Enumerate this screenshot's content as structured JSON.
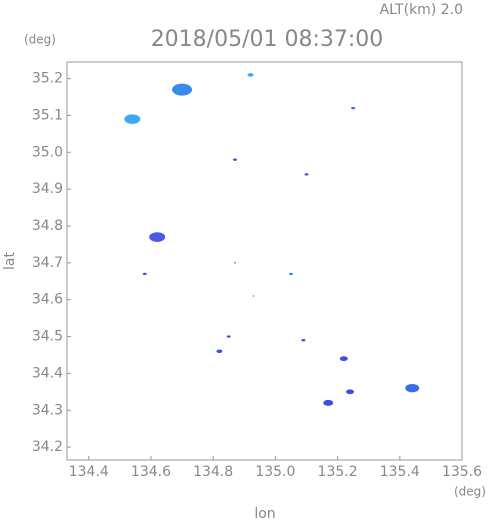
{
  "chart_data": {
    "type": "scatter",
    "title": "2018/05/01 08:37:00",
    "subtitle": "ALT(km) 2.0",
    "y_unit": "(deg)",
    "x_unit": "(deg)",
    "x_label": "lon",
    "y_label": "lat",
    "xlim": [
      134.33,
      135.6
    ],
    "ylim": [
      34.165,
      35.245
    ],
    "xticks": [
      134.4,
      134.6,
      134.8,
      {
        "value": 135.0,
        "label": "135.0"
      },
      135.2,
      135.4,
      135.6
    ],
    "yticks": [
      34.2,
      34.3,
      34.4,
      34.5,
      34.6,
      34.7,
      34.8,
      34.9,
      {
        "value": 35.0,
        "label": "35.0"
      },
      35.1,
      35.2
    ],
    "series": [
      {
        "x": [
          134.54,
          134.7,
          134.92,
          135.25,
          134.87,
          135.1,
          134.62,
          134.58,
          134.87,
          135.05,
          134.93,
          134.82,
          134.85,
          135.09,
          135.22,
          135.17,
          135.24,
          135.44
        ],
        "values": [
          35.09,
          35.17,
          35.21,
          35.12,
          34.98,
          34.94,
          34.77,
          34.67,
          34.7,
          34.67,
          34.61,
          34.46,
          34.5,
          34.49,
          34.44,
          34.32,
          34.35,
          34.36
        ],
        "sizes": [
          8,
          10,
          3,
          2,
          2,
          2,
          8,
          2,
          1,
          2,
          1,
          3,
          2,
          2,
          4,
          5,
          4,
          7
        ],
        "colors": [
          "#3fa8f0",
          "#3a8ae8",
          "#3fa8f0",
          "#3a6ee6",
          "#3a50e0",
          "#3a50e0",
          "#4a5ae8",
          "#3a50e0",
          "#3a50e0",
          "#3a8ae8",
          "#3a8ae8",
          "#3a50e0",
          "#3a50e0",
          "#3a50e0",
          "#3a50e0",
          "#3a50e0",
          "#3a50e0",
          "#3a6ee6"
        ]
      }
    ]
  }
}
